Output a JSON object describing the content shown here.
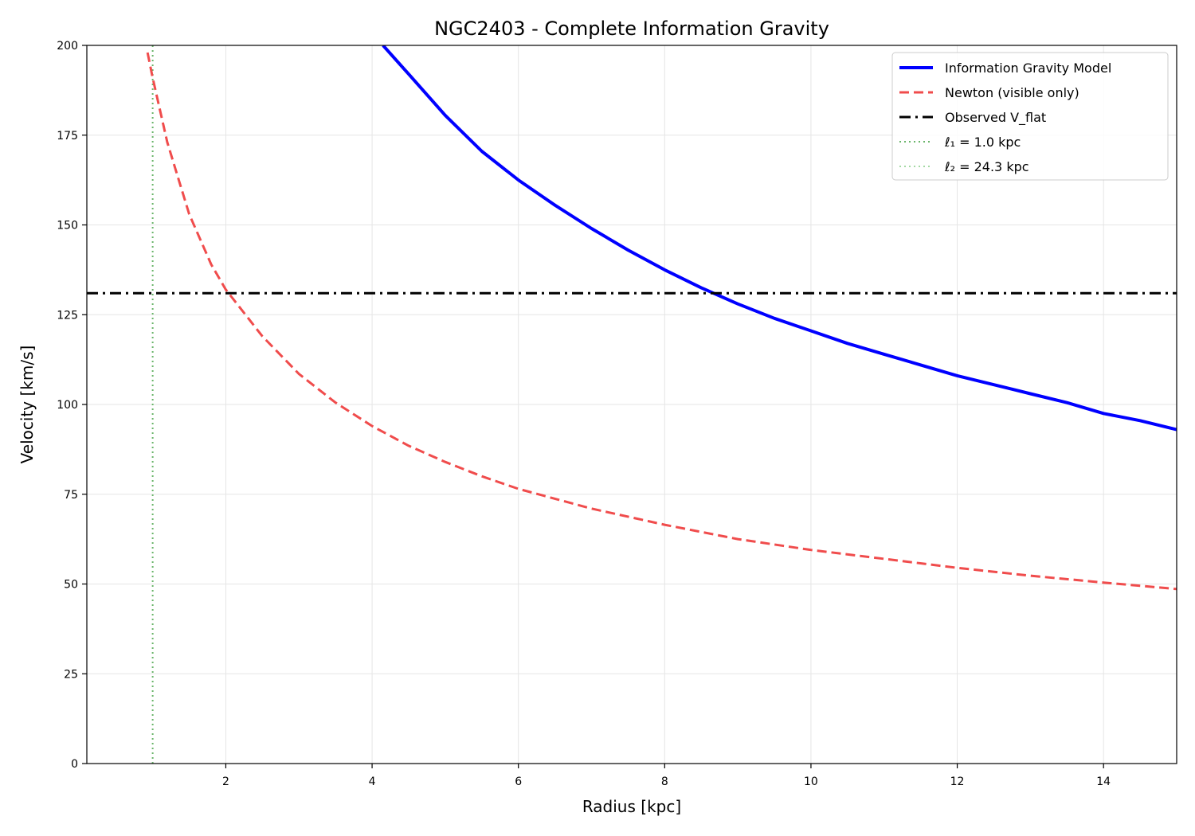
{
  "chart_data": {
    "type": "line",
    "title": "NGC2403 - Complete Information Gravity",
    "xlabel": "Radius [kpc]",
    "ylabel": "Velocity [km/s]",
    "xlim": [
      0.1,
      15
    ],
    "ylim": [
      0,
      200
    ],
    "xticks": [
      2,
      4,
      6,
      8,
      10,
      12,
      14
    ],
    "yticks": [
      0,
      25,
      50,
      75,
      100,
      125,
      150,
      175,
      200
    ],
    "grid": true,
    "legend_position": "top-right",
    "series": [
      {
        "name": "Information Gravity Model",
        "color": "#0000ff",
        "style": "solid",
        "x": [
          4.15,
          4.5,
          5,
          5.5,
          6,
          6.5,
          7,
          7.5,
          8,
          8.5,
          9,
          9.5,
          10,
          10.5,
          11,
          11.5,
          12,
          12.5,
          13,
          13.5,
          14,
          14.5,
          15
        ],
        "y": [
          200,
          192,
          180.5,
          170.5,
          162.5,
          155.5,
          149,
          143,
          137.5,
          132.5,
          128,
          124,
          120.5,
          117,
          114,
          111,
          108,
          105.5,
          103,
          100.5,
          97.5,
          95.5,
          93
        ]
      },
      {
        "name": "Newton (visible only)",
        "color": "#f04c4c",
        "style": "dashed",
        "x": [
          0.93,
          1,
          1.2,
          1.5,
          1.8,
          2,
          2.5,
          3,
          3.5,
          4,
          4.5,
          5,
          5.5,
          6,
          7,
          8,
          9,
          10,
          11,
          12,
          13,
          14,
          15
        ],
        "y": [
          198,
          191,
          173,
          153,
          139,
          132,
          119,
          108.5,
          100.5,
          94,
          88.5,
          84,
          80,
          76.5,
          71,
          66.5,
          62.5,
          59.5,
          57,
          54.5,
          52.3,
          50.4,
          48.6
        ]
      },
      {
        "name": "Observed V_flat",
        "color": "#000000",
        "style": "dashdot",
        "x": [
          0.1,
          15
        ],
        "y": [
          131,
          131
        ]
      }
    ],
    "vlines": [
      {
        "name": "ℓ₁ = 1.0 kpc",
        "x": 1.0,
        "color": "#6ab56a",
        "style": "dotted",
        "visible": true
      },
      {
        "name": "ℓ₂ = 24.3 kpc",
        "x": 24.3,
        "color": "#a3d9a3",
        "style": "dotted",
        "visible": false
      }
    ]
  }
}
